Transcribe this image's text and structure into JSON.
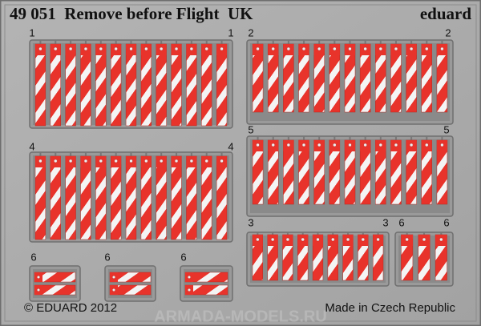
{
  "header": {
    "title": "49 051  Remove before Flight  UK",
    "brand": "eduard"
  },
  "groups": [
    {
      "labels": [
        "1",
        "1"
      ]
    },
    {
      "labels": [
        "2",
        "2"
      ]
    },
    {
      "labels": [
        "4",
        "4"
      ]
    },
    {
      "labels": [
        "5",
        "5"
      ]
    },
    {
      "labels": [
        "3",
        "3"
      ]
    },
    {
      "labels": [
        "6",
        "6"
      ]
    },
    {
      "labels": [
        "6"
      ]
    },
    {
      "labels": [
        "6"
      ]
    },
    {
      "labels": [
        "6"
      ]
    }
  ],
  "footer": {
    "copyright": "© EDUARD 2012",
    "origin": "Made in Czech Republic",
    "watermark": "ARMADA-MODELS.RU"
  }
}
